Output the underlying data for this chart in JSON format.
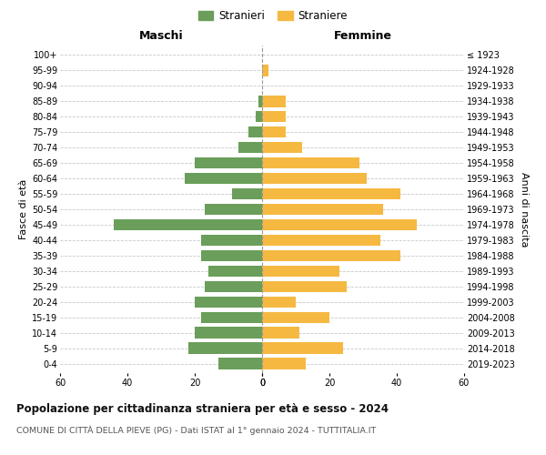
{
  "age_groups": [
    "100+",
    "95-99",
    "90-94",
    "85-89",
    "80-84",
    "75-79",
    "70-74",
    "65-69",
    "60-64",
    "55-59",
    "50-54",
    "45-49",
    "40-44",
    "35-39",
    "30-34",
    "25-29",
    "20-24",
    "15-19",
    "10-14",
    "5-9",
    "0-4"
  ],
  "birth_years": [
    "≤ 1923",
    "1924-1928",
    "1929-1933",
    "1934-1938",
    "1939-1943",
    "1944-1948",
    "1949-1953",
    "1954-1958",
    "1959-1963",
    "1964-1968",
    "1969-1973",
    "1974-1978",
    "1979-1983",
    "1984-1988",
    "1989-1993",
    "1994-1998",
    "1999-2003",
    "2004-2008",
    "2009-2013",
    "2014-2018",
    "2019-2023"
  ],
  "males": [
    0,
    0,
    0,
    1,
    2,
    4,
    7,
    20,
    23,
    9,
    17,
    44,
    18,
    18,
    16,
    17,
    20,
    18,
    20,
    22,
    13
  ],
  "females": [
    0,
    2,
    0,
    7,
    7,
    7,
    12,
    29,
    31,
    41,
    36,
    46,
    35,
    41,
    23,
    25,
    10,
    20,
    11,
    24,
    13
  ],
  "male_color": "#6a9e5a",
  "female_color": "#f5b942",
  "background_color": "#ffffff",
  "grid_color": "#c8c8c8",
  "title": "Popolazione per cittadinanza straniera per età e sesso - 2024",
  "subtitle": "COMUNE DI CITTÀ DELLA PIEVE (PG) - Dati ISTAT al 1° gennaio 2024 - TUTTITALIA.IT",
  "ylabel_left": "Fasce di età",
  "ylabel_right": "Anni di nascita",
  "xlabel_left": "Maschi",
  "xlabel_right": "Femmine",
  "legend_males": "Stranieri",
  "legend_females": "Straniere",
  "xlim": 60,
  "bar_height": 0.75
}
